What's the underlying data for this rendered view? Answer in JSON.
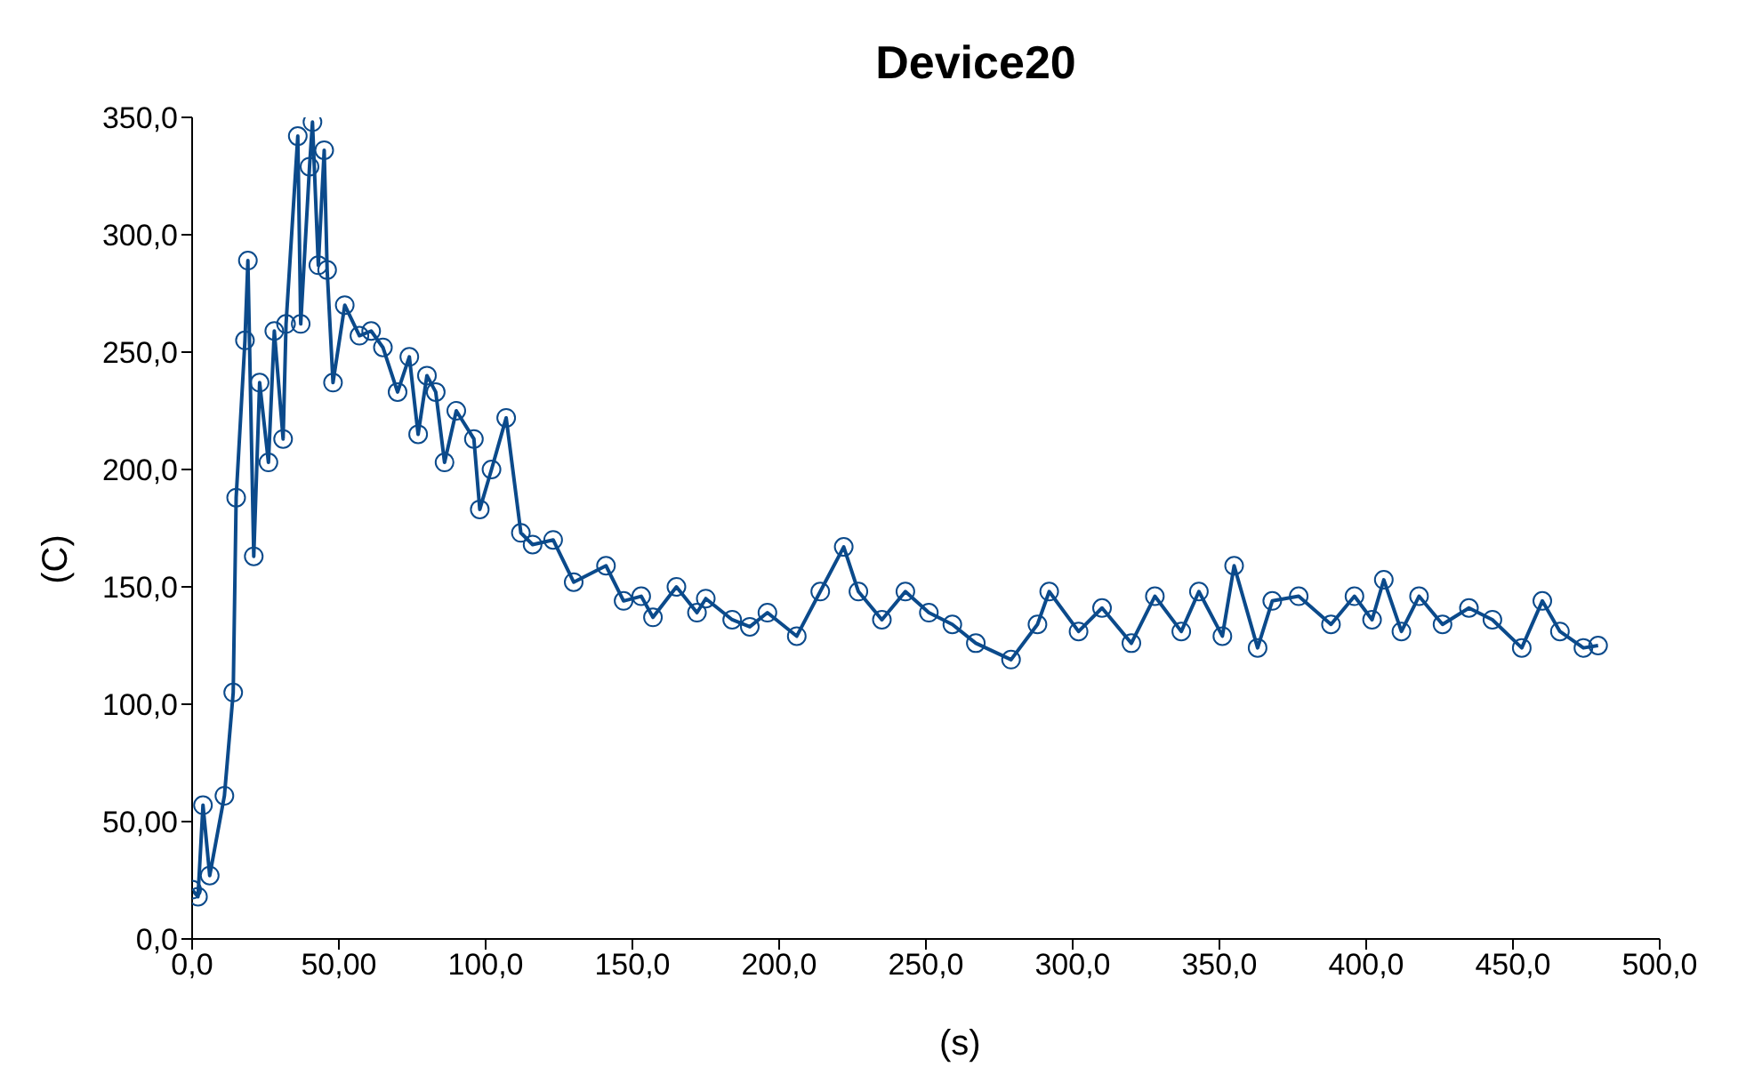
{
  "chart_data": {
    "type": "line",
    "title": "Device20",
    "xlabel": "(s)",
    "ylabel": "(C)",
    "xlim": [
      0,
      500
    ],
    "ylim": [
      0,
      350
    ],
    "xticks": [
      {
        "value": 0,
        "label": "0,0"
      },
      {
        "value": 50,
        "label": "50,00"
      },
      {
        "value": 100,
        "label": "100,0"
      },
      {
        "value": 150,
        "label": "150,0"
      },
      {
        "value": 200,
        "label": "200,0"
      },
      {
        "value": 250,
        "label": "250,0"
      },
      {
        "value": 300,
        "label": "300,0"
      },
      {
        "value": 350,
        "label": "350,0"
      },
      {
        "value": 400,
        "label": "400,0"
      },
      {
        "value": 450,
        "label": "450,0"
      },
      {
        "value": 500,
        "label": "500,0"
      }
    ],
    "yticks": [
      {
        "value": 0,
        "label": "0,0"
      },
      {
        "value": 50,
        "label": "50,00"
      },
      {
        "value": 100,
        "label": "100,0"
      },
      {
        "value": 150,
        "label": "150,0"
      },
      {
        "value": 200,
        "label": "200,0"
      },
      {
        "value": 250,
        "label": "250,0"
      },
      {
        "value": 300,
        "label": "300,0"
      },
      {
        "value": 350,
        "label": "350,0"
      }
    ],
    "grid": false,
    "legend": false,
    "marker": "circle",
    "line_style": "solid",
    "series": [
      {
        "color": "#0b4a8b",
        "x": [
          0,
          2,
          3.7,
          6,
          11,
          14,
          15,
          18,
          19,
          21,
          23,
          26,
          28,
          31,
          32,
          36,
          37,
          40,
          41,
          43,
          45,
          46,
          48,
          52,
          57,
          61,
          65,
          70,
          74,
          77,
          80,
          83,
          86,
          90,
          96,
          98,
          102,
          107,
          112,
          116,
          123,
          130,
          141,
          147,
          153,
          157,
          165,
          172,
          175,
          184,
          190,
          196,
          206,
          214,
          222,
          227,
          235,
          243,
          251,
          259,
          267,
          279,
          288,
          292,
          302,
          310,
          320,
          328,
          337,
          343,
          351,
          355,
          363,
          368,
          377,
          388,
          396,
          402,
          406,
          412,
          418,
          426,
          435,
          443,
          453,
          460,
          466,
          474,
          479
        ],
        "values": [
          21,
          18,
          57,
          27,
          61,
          105,
          188,
          255,
          289,
          163,
          237,
          203,
          259,
          213,
          262,
          342,
          262,
          329,
          348,
          287,
          336,
          285,
          237,
          270,
          257,
          259,
          252,
          233,
          248,
          215,
          240,
          233,
          203,
          225,
          213,
          183,
          200,
          222,
          173,
          168,
          170,
          152,
          159,
          144,
          146,
          137,
          150,
          139,
          145,
          136,
          133,
          139,
          129,
          148,
          167,
          148,
          136,
          148,
          139,
          134,
          126,
          119,
          134,
          148,
          131,
          141,
          126,
          146,
          131,
          148,
          129,
          159,
          124,
          144,
          146,
          134,
          146,
          136,
          153,
          131,
          146,
          134,
          141,
          136,
          124,
          144,
          131,
          124,
          125
        ]
      }
    ]
  }
}
